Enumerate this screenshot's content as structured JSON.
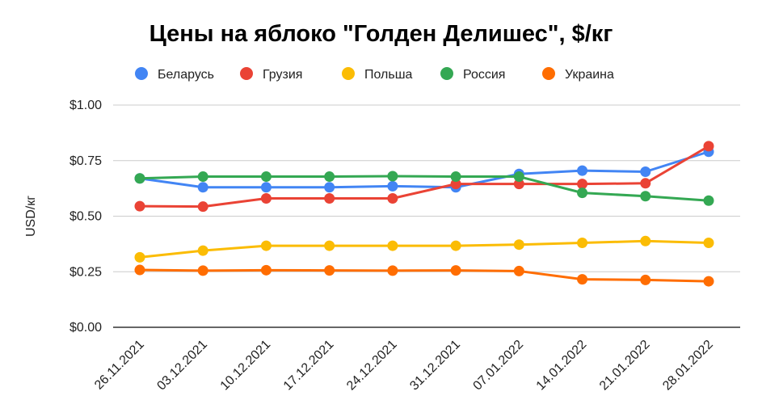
{
  "chart_data": {
    "type": "line",
    "title": "Цены на яблоко \"Голден Делишес\", $/кг",
    "xlabel": "",
    "ylabel": "USD/кг",
    "ylim": [
      0,
      1
    ],
    "grid": true,
    "legend_position": "top",
    "y_ticks": [
      "$0.00",
      "$0.25",
      "$0.50",
      "$0.75",
      "$1.00"
    ],
    "y_tick_values": [
      0,
      0.25,
      0.5,
      0.75,
      1.0
    ],
    "categories": [
      "26.11.2021",
      "03.12.2021",
      "10.12.2021",
      "17.12.2021",
      "24.12.2021",
      "31.12.2021",
      "07.01.2022",
      "14.01.2022",
      "21.01.2022",
      "28.01.2022"
    ],
    "series": [
      {
        "name": "Беларусь",
        "color": "#4285f4",
        "values": [
          0.67,
          0.63,
          0.63,
          0.63,
          0.635,
          0.63,
          0.69,
          0.705,
          0.7,
          0.79
        ]
      },
      {
        "name": "Грузия",
        "color": "#ea4335",
        "values": [
          0.545,
          0.543,
          0.58,
          0.58,
          0.58,
          0.645,
          0.645,
          0.645,
          0.648,
          0.815
        ]
      },
      {
        "name": "Польша",
        "color": "#fbbc04",
        "values": [
          0.315,
          0.345,
          0.367,
          0.367,
          0.367,
          0.367,
          0.372,
          0.38,
          0.388,
          0.38
        ]
      },
      {
        "name": "Россия",
        "color": "#34a853",
        "values": [
          0.67,
          0.678,
          0.678,
          0.678,
          0.68,
          0.678,
          0.678,
          0.605,
          0.59,
          0.57
        ]
      },
      {
        "name": "Украина",
        "color": "#ff6d01",
        "values": [
          0.258,
          0.255,
          0.257,
          0.256,
          0.255,
          0.256,
          0.253,
          0.216,
          0.213,
          0.207
        ]
      }
    ]
  }
}
